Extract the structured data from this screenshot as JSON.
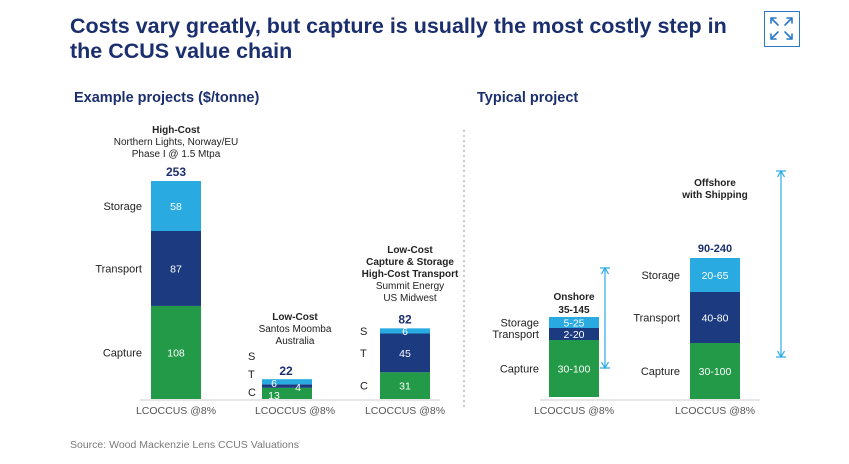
{
  "title": "Costs vary greatly, but capture is usually the most costly step in the CCUS value chain",
  "expand_icon": "expand-arrows-icon",
  "left_heading": "Example projects ($/tonne)",
  "right_heading": "Typical project",
  "source": "Source: Wood Mackenzie Lens CCUS Valuations",
  "colors": {
    "storage": "#29abe2",
    "transport": "#1b3a80",
    "capture": "#239a48",
    "arrow": "#29abe2",
    "title": "#1b2f6e"
  },
  "chart_data": [
    {
      "type": "stacked-bar",
      "title": "Example projects ($/tonne)",
      "xlabel": "LCOCCUS @8%",
      "ylim": [
        0,
        253
      ],
      "segments": [
        "Capture",
        "Transport",
        "Storage"
      ],
      "bars": [
        {
          "name": "high-cost",
          "header_lines": [
            "High-Cost",
            "Northern Lights, Norway/EU",
            "Phase I @ 1.5 Mtpa"
          ],
          "total": 253,
          "total_label": "253",
          "values": [
            108,
            87,
            58
          ],
          "labels": [
            "108",
            "87",
            "58"
          ],
          "seg_names": [
            "Capture",
            "Transport",
            "Storage"
          ],
          "xlabel": "LCOCCUS @8%"
        },
        {
          "name": "low-cost",
          "header_lines": [
            "Low-Cost",
            "Santos Moomba",
            "Australia"
          ],
          "total": 22,
          "total_label": "22",
          "values": [
            13,
            4,
            6
          ],
          "labels": [
            "13",
            "4",
            "6"
          ],
          "seg_names": [
            "C",
            "T",
            "S"
          ],
          "xlabel": "LCOCCUS @8%"
        },
        {
          "name": "low-cost-capture-storage",
          "header_lines": [
            "Low-Cost",
            "Capture & Storage",
            "High-Cost Transport",
            "Summit Energy",
            "US Midwest"
          ],
          "total": 82,
          "total_label": "82",
          "values": [
            31,
            45,
            6
          ],
          "labels": [
            "31",
            "45",
            "6"
          ],
          "seg_names": [
            "C",
            "T",
            "S"
          ],
          "xlabel": "LCOCCUS @8%"
        }
      ]
    },
    {
      "type": "stacked-bar-range",
      "title": "Typical project",
      "xlabel": "LCOCCUS @8%",
      "bars": [
        {
          "name": "onshore",
          "header_lines": [
            "Onshore",
            "35-145"
          ],
          "ranges": [
            "30-100",
            "2-20",
            "5-25"
          ],
          "seg_names": [
            "Capture",
            "Transport",
            "Storage"
          ],
          "xlabel": "LCOCCUS @8%"
        },
        {
          "name": "offshore",
          "header_lines": [
            "Offshore",
            "with Shipping"
          ],
          "total_label": "90-240",
          "ranges": [
            "30-100",
            "40-80",
            "20-65"
          ],
          "seg_names": [
            "Capture",
            "Transport",
            "Storage"
          ],
          "xlabel": "LCOCCUS @8%"
        }
      ]
    }
  ]
}
